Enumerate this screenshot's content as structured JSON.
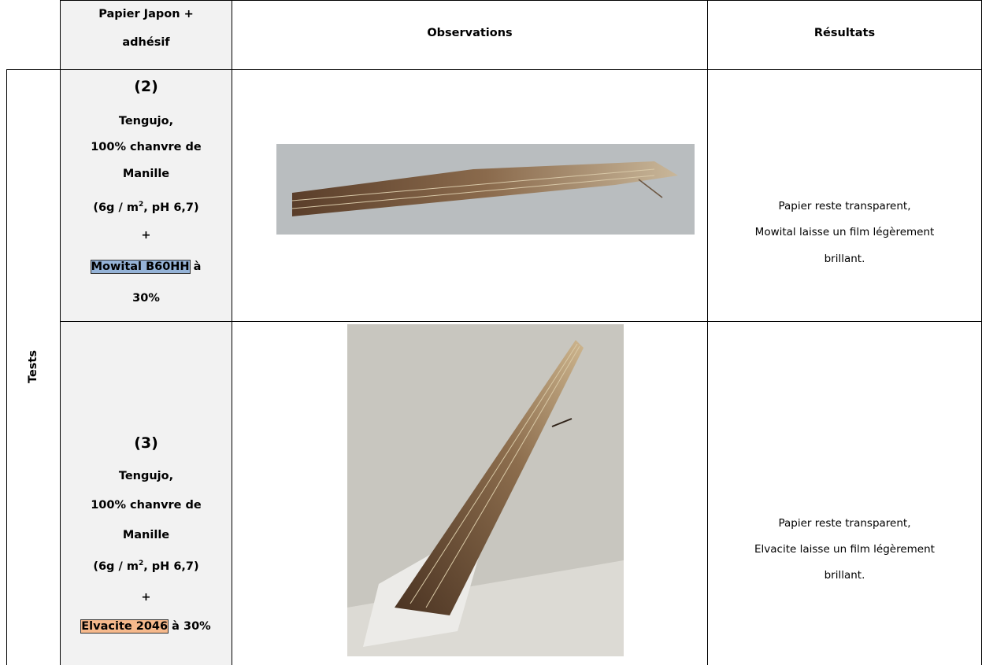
{
  "header": {
    "paper": [
      "Papier Japon +",
      "adhésif"
    ],
    "observations": "Observations",
    "results": "Résultats"
  },
  "side_label": "Tests",
  "rows": [
    {
      "number": "(2)",
      "paper": [
        "Tengujo,",
        "100% chanvre de",
        "Manille"
      ],
      "grammage": {
        "before": "(6g / m",
        "sup": "2",
        "after": ", pH 6,7)"
      },
      "plus": "+",
      "adhesive": "Mowital B60HH",
      "adhesive_rest": " à",
      "concentration": "30%",
      "result": [
        "Papier reste transparent,",
        "Mowital laisse un film légèrement",
        "brillant."
      ]
    },
    {
      "number": "(3)",
      "paper": [
        "Tengujo,",
        "100% chanvre de",
        "Manille"
      ],
      "grammage": {
        "before": "(6g / m",
        "sup": "2",
        "after": ", pH 6,7)"
      },
      "plus": "+",
      "adhesive": "Elvacite 2046",
      "adhesive_rest": " à 30%",
      "result": [
        "Papier reste transparent,",
        "Elvacite laisse un film légèrement",
        "brillant."
      ]
    }
  ]
}
